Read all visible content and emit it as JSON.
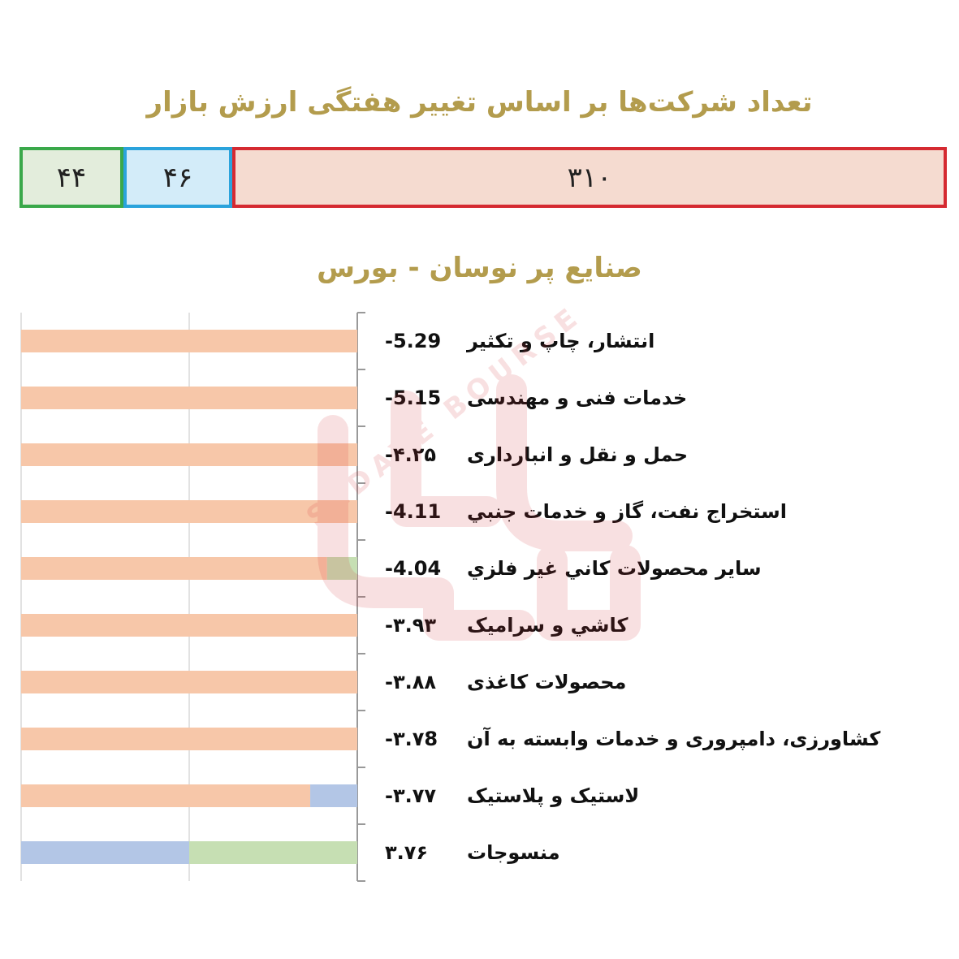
{
  "header": {
    "title": "تعداد شرکت‌ها بر اساس تغییر هفتگی ارزش بازار"
  },
  "summary": {
    "green_count": "۴۴",
    "blue_count": "۴۶",
    "red_count": "۳۱۰",
    "colors": {
      "green": "#3aa84a",
      "blue": "#2aa3dc",
      "red": "#d52a31"
    }
  },
  "section": {
    "title": "صنایع پر نوسان - بورس"
  },
  "chart_data": {
    "type": "bar",
    "orientation": "horizontal",
    "grid": true,
    "rows": [
      {
        "label": "انتشار، چاپ و تکثير",
        "value_text": "-5.29",
        "value": -5.29,
        "segments": [
          {
            "color": "#f7c7a9",
            "fraction": 1.0
          }
        ]
      },
      {
        "label": "خدمات فنی و مهندسی",
        "value_text": "-5.15",
        "value": -5.15,
        "segments": [
          {
            "color": "#f7c7a9",
            "fraction": 1.0
          }
        ]
      },
      {
        "label": "حمل و نقل و انبارداری",
        "value_text": "-۴.۲۵",
        "value": -4.25,
        "segments": [
          {
            "color": "#f7c7a9",
            "fraction": 1.0
          }
        ]
      },
      {
        "label": "استخراج نفت، گاز و خدمات جنبي",
        "value_text": "-4.11",
        "value": -4.11,
        "segments": [
          {
            "color": "#f7c7a9",
            "fraction": 1.0
          }
        ]
      },
      {
        "label": "ساير محصولات کاني غير فلزي",
        "value_text": "-4.04",
        "value": -4.04,
        "segments": [
          {
            "color": "#f7c7a9",
            "fraction": 0.91
          },
          {
            "color": "#c6dfb3",
            "fraction": 0.09
          }
        ]
      },
      {
        "label": "کاشي و سراميک",
        "value_text": "-۳.۹۳",
        "value": -3.93,
        "segments": [
          {
            "color": "#f7c7a9",
            "fraction": 1.0
          }
        ]
      },
      {
        "label": "محصولات کاغذی",
        "value_text": "-۳.۸۸",
        "value": -3.88,
        "segments": [
          {
            "color": "#f7c7a9",
            "fraction": 1.0
          }
        ]
      },
      {
        "label": "کشاورزی، دامپروری و خدمات وابسته به آن",
        "value_text": "-۳.۷8",
        "value": -3.78,
        "segments": [
          {
            "color": "#f7c7a9",
            "fraction": 1.0
          }
        ]
      },
      {
        "label": "لاستيک و پلاستيک",
        "value_text": "-۳.۷۷",
        "value": -3.77,
        "segments": [
          {
            "color": "#f7c7a9",
            "fraction": 0.86
          },
          {
            "color": "#b3c6e6",
            "fraction": 0.14
          }
        ]
      },
      {
        "label": "منسوجات",
        "value_text": "۳.۷۶",
        "value": 3.76,
        "segments": [
          {
            "color": "#b3c6e6",
            "fraction": 0.5
          },
          {
            "color": "#c6dfb3",
            "fraction": 0.5
          }
        ]
      }
    ]
  },
  "watermark": {
    "text": "SEDAYE BOURSE"
  }
}
